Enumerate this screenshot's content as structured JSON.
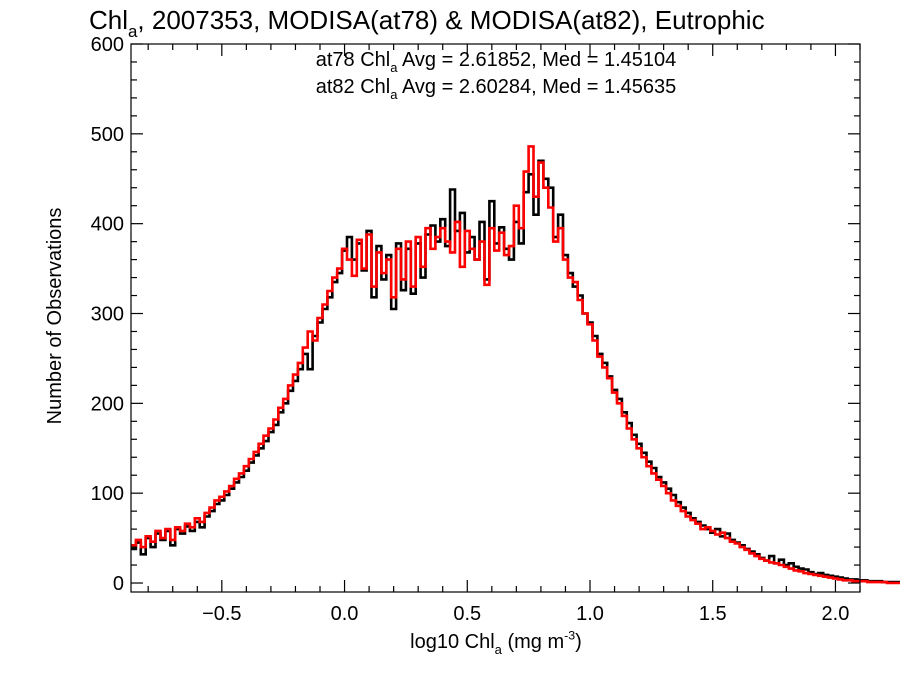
{
  "chart_data": {
    "type": "step",
    "title": {
      "parts": [
        {
          "text": "Chl",
          "sub": false
        },
        {
          "text": "a",
          "sub": true
        },
        {
          "text": ", 2007353, MODISA(at78) & MODISA(at82), Eutrophic",
          "sub": false
        }
      ]
    },
    "annotations": [
      {
        "color": "#000000",
        "parts": [
          {
            "text": "at78 Chl",
            "sub": false
          },
          {
            "text": "a",
            "sub": true
          },
          {
            "text": " Avg = 2.61852, Med = 1.45104",
            "sub": false
          }
        ]
      },
      {
        "color": "#ff0000",
        "parts": [
          {
            "text": "at82 Chl",
            "sub": false
          },
          {
            "text": "a",
            "sub": true
          },
          {
            "text": " Avg = 2.60284, Med = 1.45635",
            "sub": false
          }
        ]
      }
    ],
    "xlabel": {
      "parts": [
        {
          "text": "log10 Chl",
          "sub": false
        },
        {
          "text": "a",
          "sub": true
        },
        {
          "text": " (mg m",
          "sub": false
        },
        {
          "text": "-3",
          "sup": true
        },
        {
          "text": ")",
          "sub": false
        }
      ]
    },
    "ylabel": "Number of Observations",
    "xlim": [
      -0.87,
      2.1
    ],
    "ylim": [
      -10,
      600
    ],
    "xticks": [
      -0.5,
      0.0,
      0.5,
      1.0,
      1.5,
      2.0
    ],
    "xtick_labels": [
      "−0.5",
      "0.0",
      "0.5",
      "1.0",
      "1.5",
      "2.0"
    ],
    "yticks": [
      0,
      100,
      200,
      300,
      400,
      500,
      600
    ],
    "ytick_labels": [
      "0",
      "100",
      "200",
      "300",
      "400",
      "500",
      "600"
    ],
    "grid": false,
    "bin_start": -0.87,
    "bin_width": 0.02,
    "series": [
      {
        "name": "at78",
        "color": "#000000",
        "values": [
          38,
          45,
          32,
          50,
          40,
          55,
          48,
          58,
          42,
          60,
          55,
          63,
          58,
          68,
          62,
          74,
          80,
          88,
          92,
          98,
          105,
          112,
          118,
          125,
          134,
          142,
          150,
          158,
          168,
          176,
          190,
          200,
          214,
          225,
          238,
          255,
          238,
          275,
          290,
          305,
          318,
          335,
          345,
          370,
          385,
          360,
          378,
          348,
          392,
          318,
          375,
          338,
          365,
          305,
          378,
          326,
          372,
          322,
          378,
          340,
          388,
          398,
          380,
          405,
          375,
          438,
          392,
          412,
          368,
          385,
          360,
          402,
          338,
          425,
          378,
          396,
          372,
          360,
          402,
          378,
          435,
          455,
          410,
          470,
          450,
          440,
          385,
          410,
          365,
          345,
          330,
          320,
          300,
          290,
          275,
          255,
          245,
          230,
          215,
          205,
          190,
          178,
          165,
          155,
          145,
          135,
          128,
          118,
          112,
          105,
          98,
          90,
          84,
          78,
          72,
          68,
          64,
          60,
          56,
          60,
          52,
          55,
          48,
          45,
          42,
          38,
          35,
          32,
          28,
          25,
          30,
          22,
          26,
          20,
          22,
          18,
          16,
          15,
          12,
          10,
          11,
          9,
          8,
          7,
          6,
          5,
          4,
          4,
          3,
          3,
          2,
          2,
          2,
          1,
          1,
          1,
          1,
          0,
          0,
          0
        ]
      },
      {
        "name": "at82",
        "color": "#ff0000",
        "values": [
          42,
          48,
          40,
          52,
          46,
          58,
          50,
          60,
          48,
          62,
          58,
          66,
          62,
          72,
          68,
          78,
          84,
          92,
          96,
          102,
          108,
          116,
          122,
          130,
          138,
          146,
          155,
          164,
          172,
          182,
          195,
          205,
          220,
          232,
          245,
          262,
          280,
          270,
          295,
          310,
          325,
          340,
          350,
          372,
          360,
          342,
          382,
          350,
          388,
          330,
          368,
          345,
          360,
          318,
          372,
          338,
          380,
          330,
          385,
          352,
          395,
          372,
          385,
          395,
          380,
          368,
          402,
          352,
          392,
          372,
          360,
          380,
          332,
          395,
          370,
          390,
          365,
          375,
          420,
          395,
          458,
          486,
          430,
          468,
          440,
          418,
          380,
          395,
          360,
          340,
          335,
          315,
          300,
          288,
          270,
          252,
          240,
          228,
          212,
          200,
          186,
          172,
          160,
          150,
          140,
          130,
          122,
          115,
          108,
          100,
          92,
          86,
          80,
          74,
          70,
          66,
          60,
          62,
          58,
          54,
          56,
          50,
          46,
          44,
          40,
          37,
          33,
          30,
          27,
          25,
          23,
          22,
          20,
          18,
          16,
          14,
          13,
          11,
          10,
          9,
          8,
          7,
          6,
          5,
          4,
          3,
          3,
          2,
          2,
          2,
          1,
          1,
          1,
          1,
          0,
          0,
          0,
          0,
          0,
          0
        ]
      }
    ]
  }
}
